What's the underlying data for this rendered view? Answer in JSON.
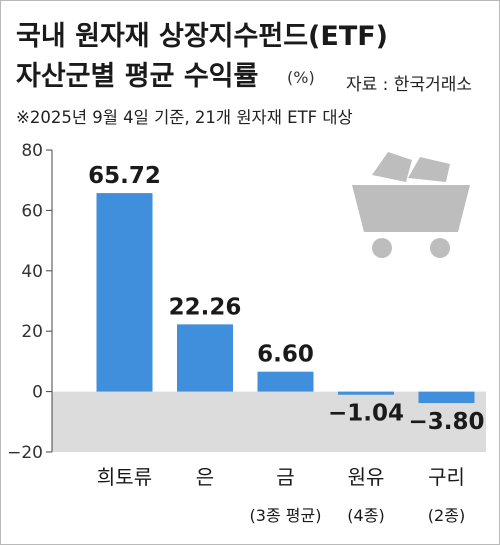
{
  "title_line1": "국내 원자재 상장지수펀드(ETF)",
  "title_line2": "자산군별 평균 수익률",
  "unit": "(%)",
  "source": "자료 : 한국거래소",
  "note": "※2025년 9월 4일 기준, 21개 원자재 ETF 대상",
  "colors": {
    "bar": "#3f8fdc",
    "negative_band": "#dcdcdc",
    "icon": "#bdbdbd",
    "text": "#1a1a1a"
  },
  "icon_name": "mine-cart-icon",
  "chart_data": {
    "type": "bar",
    "categories": [
      "희토류",
      "은",
      "금",
      "원유",
      "구리"
    ],
    "category_sublabels": [
      "",
      "",
      "(3종 평균)",
      "(4종)",
      "(2종)"
    ],
    "values": [
      65.72,
      22.26,
      6.6,
      -1.04,
      -3.8
    ],
    "value_labels": [
      "65.72",
      "22.26",
      "6.60",
      "−1.04",
      "−3.80"
    ],
    "yticks": [
      "80",
      "60",
      "40",
      "20",
      "0",
      "−20"
    ],
    "ytick_values": [
      80,
      60,
      40,
      20,
      0,
      -20
    ],
    "ylim": [
      -20,
      80
    ],
    "grid": false
  }
}
